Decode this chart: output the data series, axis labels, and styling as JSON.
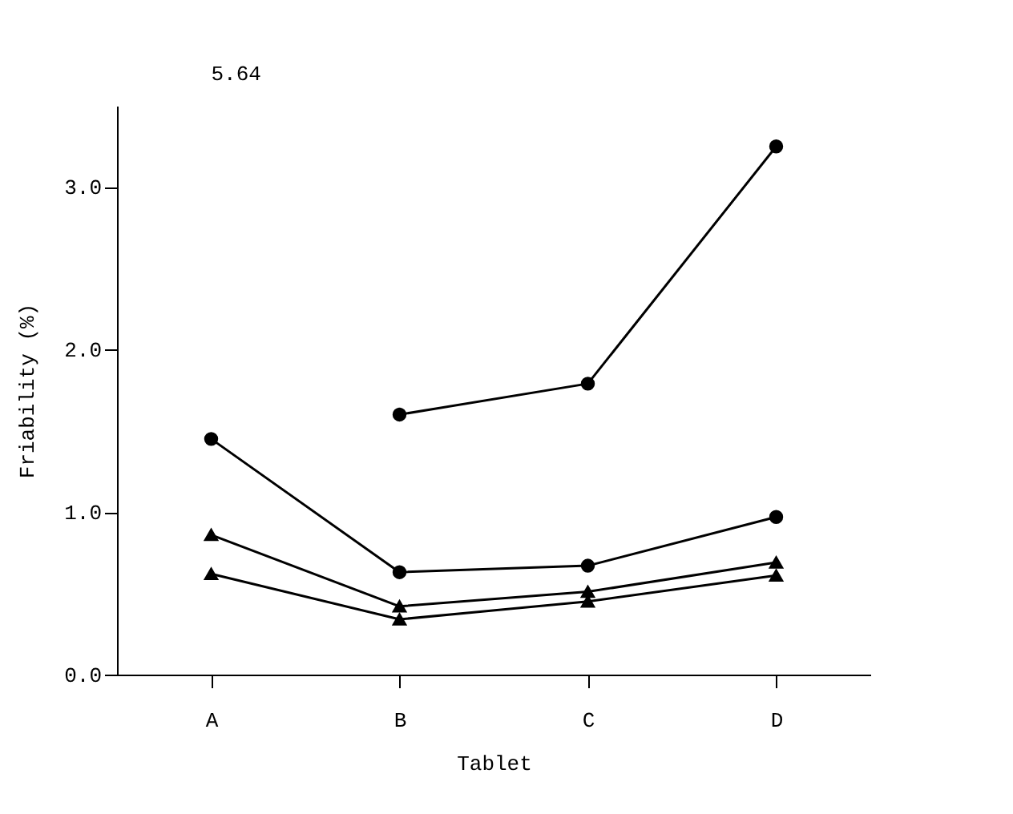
{
  "chart_data": {
    "type": "line",
    "xlabel": "Tablet",
    "ylabel": "Friability (%)",
    "categories": [
      "A",
      "B",
      "C",
      "D"
    ],
    "series": [
      {
        "color": "#000000",
        "marker": "circle",
        "values": [
          null,
          1.6,
          1.79,
          3.25
        ]
      },
      {
        "color": "#000000",
        "marker": "circle",
        "values": [
          1.45,
          0.63,
          0.67,
          0.97
        ]
      },
      {
        "color": "#000000",
        "marker": "triangle",
        "values": [
          0.86,
          0.42,
          0.51,
          0.69
        ]
      },
      {
        "color": "#000000",
        "marker": "triangle",
        "values": [
          0.62,
          0.34,
          0.45,
          0.61
        ]
      }
    ],
    "annotations": [
      "5.64"
    ],
    "ylim": [
      0,
      3.5
    ],
    "yticks": [
      {
        "value": 0,
        "label": "0.0"
      },
      {
        "value": 1,
        "label": "1.0"
      },
      {
        "value": 2,
        "label": "2.0"
      },
      {
        "value": 3,
        "label": "3.0"
      }
    ],
    "grid": false,
    "legend": false
  }
}
